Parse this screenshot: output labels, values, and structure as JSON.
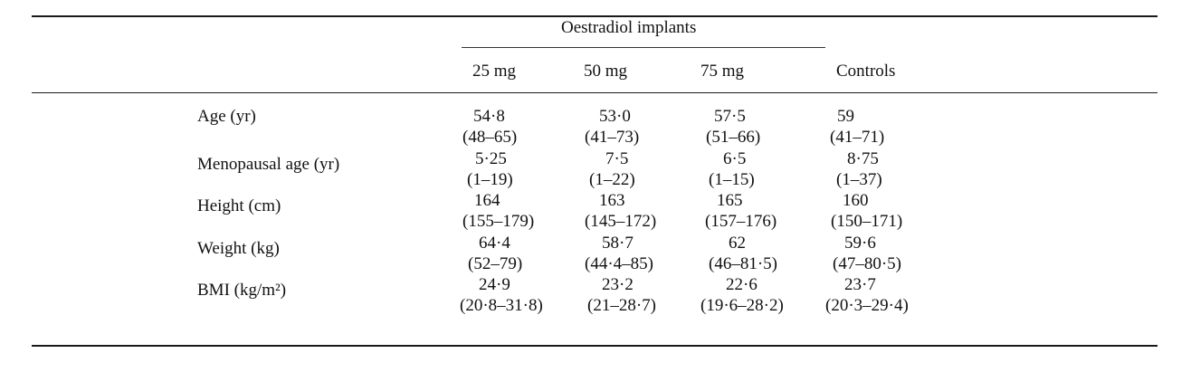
{
  "table": {
    "span_header": "Oestradiol implants",
    "columns": [
      "25 mg",
      "50 mg",
      "75 mg",
      "Controls"
    ],
    "rows": [
      {
        "label": "Age (yr)",
        "means": [
          "54·8",
          "53·0",
          "57·5",
          "59"
        ],
        "ranges": [
          "(48–65)",
          "(41–73)",
          "(51–66)",
          "(41–71)"
        ]
      },
      {
        "label": "Menopausal age (yr)",
        "means": [
          "5·25",
          "7·5",
          "6·5",
          "8·75"
        ],
        "ranges": [
          "(1–19)",
          "(1–22)",
          "(1–15)",
          "(1–37)"
        ]
      },
      {
        "label": "Height (cm)",
        "means": [
          "164",
          "163",
          "165",
          "160"
        ],
        "ranges": [
          "(155–179)",
          "(145–172)",
          "(157–176)",
          "(150–171)"
        ]
      },
      {
        "label": "Weight (kg)",
        "means": [
          "64·4",
          "58·7",
          "62",
          "59·6"
        ],
        "ranges": [
          "(52–79)",
          "(44·4–85)",
          "(46–81·5)",
          "(47–80·5)"
        ]
      },
      {
        "label": "BMI (kg/m²)",
        "means": [
          "24·9",
          "23·2",
          "22·6",
          "23·7"
        ],
        "ranges": [
          "(20·8–31·8)",
          "(21–28·7)",
          "(19·6–28·2)",
          "(20·3–29·4)"
        ]
      }
    ]
  }
}
